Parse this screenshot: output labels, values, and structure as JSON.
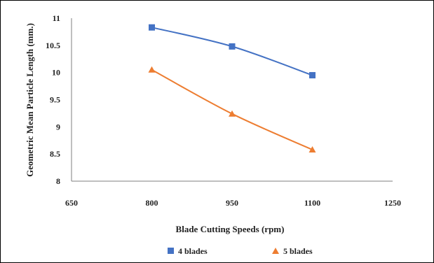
{
  "chart_data": {
    "type": "line",
    "title": "",
    "xlabel": "Blade Cutting Speeds (rpm)",
    "ylabel": "Geometric Mean Particle Length (mm.)",
    "xlim": [
      650,
      1250
    ],
    "ylim": [
      8,
      11
    ],
    "xticks": [
      "650",
      "800",
      "950",
      "1100",
      "1250"
    ],
    "yticks": [
      "8",
      "8.5",
      "9",
      "9.5",
      "10",
      "10.5",
      "11"
    ],
    "grid": false,
    "legend_position": "bottom",
    "series": [
      {
        "name": "4 blades",
        "color": "#4472C4",
        "marker": "square",
        "x": [
          800,
          950,
          1100
        ],
        "y": [
          10.83,
          10.48,
          9.95
        ]
      },
      {
        "name": "5 blades",
        "color": "#ED7D31",
        "marker": "triangle",
        "x": [
          800,
          950,
          1100
        ],
        "y": [
          10.05,
          9.24,
          8.58
        ]
      }
    ]
  }
}
